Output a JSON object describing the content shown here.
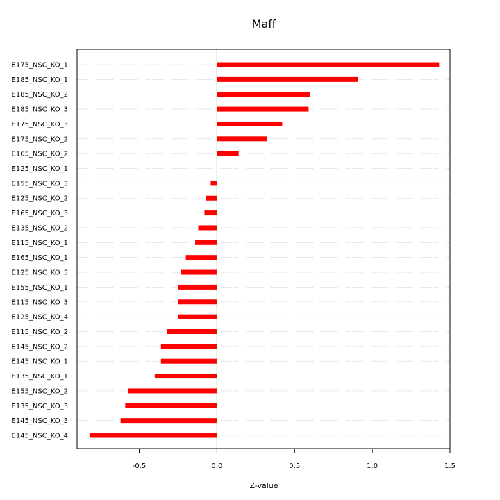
{
  "chart_data": {
    "type": "bar",
    "orientation": "horizontal",
    "title": "Maff",
    "xlabel": "Z-value",
    "ylabel": "",
    "xlim": [
      -0.9,
      1.5
    ],
    "xticks": [
      -0.5,
      0.0,
      0.5,
      1.0,
      1.5
    ],
    "xtick_labels": [
      "-0.5",
      "0.0",
      "0.5",
      "1.0",
      "1.5"
    ],
    "grid": "horizontal dotted",
    "reference_line": 0,
    "bar_color": "#ff0000",
    "reference_line_color": "#00cc00",
    "categories": [
      "E175_NSC_KO_1",
      "E185_NSC_KO_1",
      "E185_NSC_KO_2",
      "E185_NSC_KO_3",
      "E175_NSC_KO_3",
      "E175_NSC_KO_2",
      "E165_NSC_KO_2",
      "E125_NSC_KO_1",
      "E155_NSC_KO_3",
      "E125_NSC_KO_2",
      "E165_NSC_KO_3",
      "E135_NSC_KO_2",
      "E115_NSC_KO_1",
      "E165_NSC_KO_1",
      "E125_NSC_KO_3",
      "E155_NSC_KO_1",
      "E115_NSC_KO_3",
      "E125_NSC_KO_4",
      "E115_NSC_KO_2",
      "E145_NSC_KO_2",
      "E145_NSC_KO_1",
      "E135_NSC_KO_1",
      "E155_NSC_KO_2",
      "E135_NSC_KO_3",
      "E145_NSC_KO_3",
      "E145_NSC_KO_4"
    ],
    "values": [
      1.43,
      0.91,
      0.6,
      0.59,
      0.42,
      0.32,
      0.14,
      0.0,
      -0.04,
      -0.07,
      -0.08,
      -0.12,
      -0.14,
      -0.2,
      -0.23,
      -0.25,
      -0.25,
      -0.25,
      -0.32,
      -0.36,
      -0.36,
      -0.4,
      -0.57,
      -0.59,
      -0.62,
      -0.82
    ]
  }
}
